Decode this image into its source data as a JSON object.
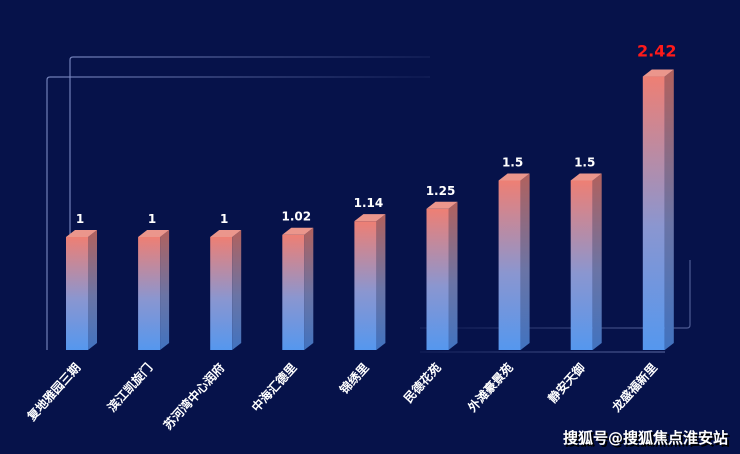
{
  "chart_data": {
    "type": "bar",
    "categories": [
      "复地雅园三期",
      "滨江凯旋门",
      "苏河湾中心润府",
      "中海汇德里",
      "锦绣里",
      "民德花苑",
      "外滩豪景苑",
      "静安天御",
      "龙盛福新里"
    ],
    "values": [
      1,
      1,
      1,
      1.02,
      1.14,
      1.25,
      1.5,
      1.5,
      2.42
    ],
    "data_labels": [
      "1",
      "1",
      "1",
      "1.02",
      "1.14",
      "1.25",
      "1.5",
      "1.5",
      "2.42"
    ],
    "highlight_index": 8,
    "title": "",
    "xlabel": "",
    "ylabel": "",
    "ylim": [
      0,
      2.6
    ],
    "grid": false,
    "colors": {
      "bar_top": "#ee7f74",
      "bar_bottom": "#5597ee",
      "label": "#ffffff",
      "highlight_label": "#ff1a1a",
      "background": "#06124a",
      "frame": "#7d8bc4"
    }
  },
  "watermark": "搜狐号@搜狐焦点淮安站"
}
